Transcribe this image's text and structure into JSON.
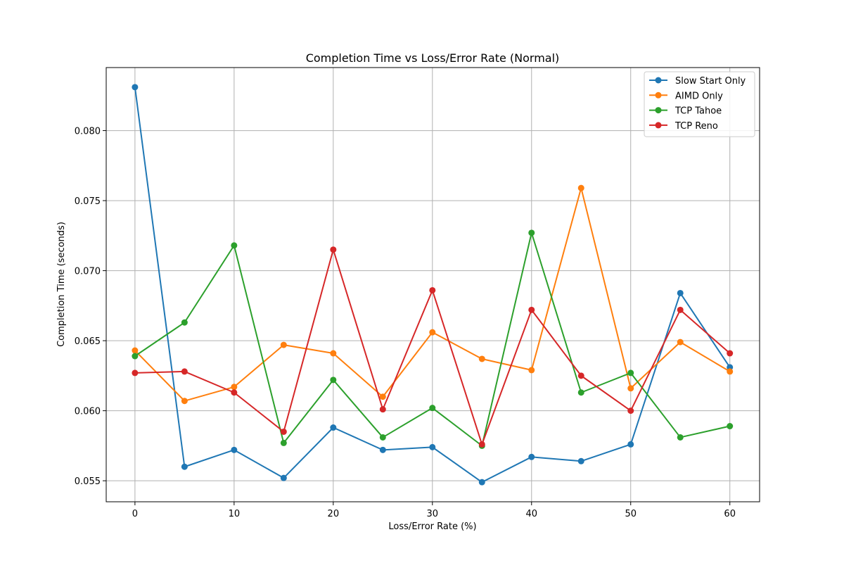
{
  "chart_data": {
    "type": "line",
    "title": "Completion Time vs Loss/Error Rate (Normal)",
    "xlabel": "Loss/Error Rate (%)",
    "ylabel": "Completion Time (seconds)",
    "x": [
      0,
      5,
      10,
      15,
      20,
      25,
      30,
      35,
      40,
      45,
      50,
      55,
      60
    ],
    "xlim": [
      -2.9,
      63
    ],
    "ylim": [
      0.0535,
      0.0845
    ],
    "x_ticks": [
      "0",
      "10",
      "20",
      "30",
      "40",
      "50",
      "60"
    ],
    "y_ticks": [
      "0.055",
      "0.060",
      "0.065",
      "0.070",
      "0.075",
      "0.080"
    ],
    "grid": true,
    "legend_position": "top-right",
    "series": [
      {
        "name": "Slow Start Only",
        "color": "#1f77b4",
        "values": [
          0.0831,
          0.056,
          0.0572,
          0.0552,
          0.0588,
          0.0572,
          0.0574,
          0.0549,
          0.0567,
          0.0564,
          0.0576,
          0.0684,
          0.0631
        ]
      },
      {
        "name": "AIMD Only",
        "color": "#ff7f0e",
        "values": [
          0.0643,
          0.0607,
          0.0617,
          0.0647,
          0.0641,
          0.061,
          0.0656,
          0.0637,
          0.0629,
          0.0759,
          0.0616,
          0.0649,
          0.0628
        ]
      },
      {
        "name": "TCP Tahoe",
        "color": "#2ca02c",
        "values": [
          0.0639,
          0.0663,
          0.0718,
          0.0577,
          0.0622,
          0.0581,
          0.0602,
          0.0575,
          0.0727,
          0.0613,
          0.0627,
          0.0581,
          0.0589
        ]
      },
      {
        "name": "TCP Reno",
        "color": "#d62728",
        "values": [
          0.0627,
          0.0628,
          0.0613,
          0.0585,
          0.0715,
          0.0601,
          0.0686,
          0.0576,
          0.0672,
          0.0625,
          0.06,
          0.0672,
          0.0641
        ]
      }
    ]
  }
}
